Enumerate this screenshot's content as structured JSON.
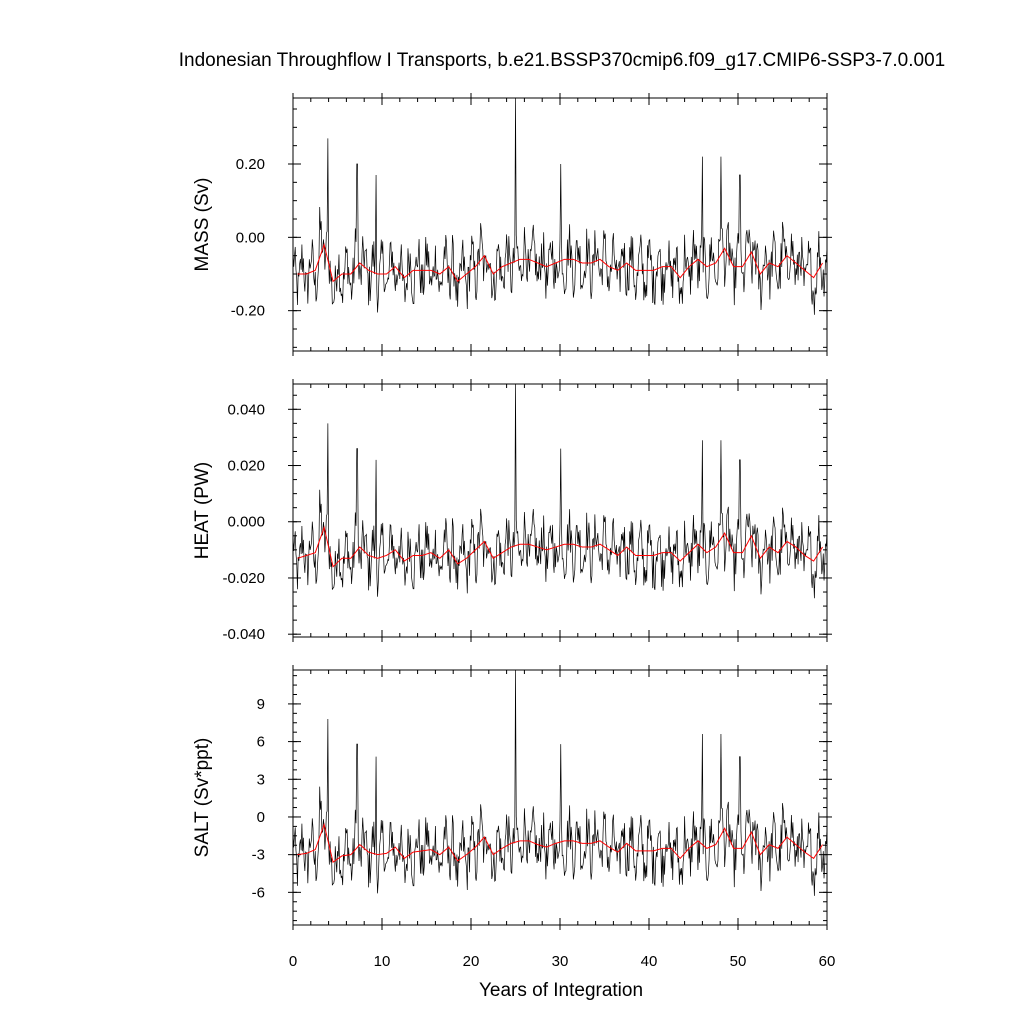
{
  "chart_data": {
    "type": "line",
    "title": "Indonesian Throughflow I Transports, b.e21.BSSP370cmip6.f09_g17.CMIP6-SSP3-7.0.001",
    "xlabel": "Years of Integration",
    "xlim": [
      0,
      60
    ],
    "x_ticks": [
      0,
      10,
      20,
      30,
      40,
      50,
      60
    ],
    "x_tick_labels": [
      "0",
      "10",
      "20",
      "30",
      "40",
      "50",
      "60"
    ],
    "series_colors": {
      "monthly": "#000000",
      "annual_mean": "#ff0000"
    },
    "panels": [
      {
        "ylabel": "MASS (Sv)",
        "ylim": [
          -0.31,
          0.38
        ],
        "y_ticks": [
          -0.2,
          0.0,
          0.2
        ],
        "y_tick_labels": [
          "-0.20",
          "0.00",
          "0.20"
        ],
        "annual_mean": [
          -0.1,
          -0.1,
          -0.09,
          -0.02,
          -0.12,
          -0.1,
          -0.1,
          -0.07,
          -0.09,
          -0.1,
          -0.1,
          -0.08,
          -0.11,
          -0.09,
          -0.09,
          -0.09,
          -0.1,
          -0.08,
          -0.12,
          -0.1,
          -0.08,
          -0.05,
          -0.1,
          -0.08,
          -0.07,
          -0.06,
          -0.06,
          -0.07,
          -0.08,
          -0.07,
          -0.06,
          -0.06,
          -0.07,
          -0.07,
          -0.06,
          -0.08,
          -0.09,
          -0.07,
          -0.09,
          -0.09,
          -0.09,
          -0.08,
          -0.08,
          -0.11,
          -0.08,
          -0.06,
          -0.08,
          -0.07,
          -0.03,
          -0.08,
          -0.08,
          -0.04,
          -0.1,
          -0.07,
          -0.08,
          -0.05,
          -0.07,
          -0.09,
          -0.11,
          -0.07
        ],
        "peak_values": [
          0.27,
          0.2,
          0.17,
          0.38,
          0.2,
          0.22,
          0.22,
          0.17
        ]
      },
      {
        "ylabel": "HEAT (PW)",
        "ylim": [
          -0.041,
          0.049
        ],
        "y_ticks": [
          -0.04,
          -0.02,
          0.0,
          0.02,
          0.04
        ],
        "y_tick_labels": [
          "-0.040",
          "-0.020",
          "0.000",
          "0.020",
          "0.040"
        ],
        "annual_mean": [
          -0.013,
          -0.012,
          -0.011,
          -0.002,
          -0.016,
          -0.013,
          -0.013,
          -0.009,
          -0.012,
          -0.013,
          -0.012,
          -0.01,
          -0.014,
          -0.012,
          -0.012,
          -0.011,
          -0.013,
          -0.01,
          -0.015,
          -0.013,
          -0.01,
          -0.007,
          -0.013,
          -0.011,
          -0.009,
          -0.008,
          -0.008,
          -0.009,
          -0.01,
          -0.009,
          -0.008,
          -0.008,
          -0.009,
          -0.009,
          -0.008,
          -0.01,
          -0.012,
          -0.009,
          -0.012,
          -0.012,
          -0.012,
          -0.011,
          -0.011,
          -0.014,
          -0.011,
          -0.008,
          -0.011,
          -0.009,
          -0.004,
          -0.011,
          -0.011,
          -0.005,
          -0.013,
          -0.009,
          -0.011,
          -0.007,
          -0.009,
          -0.012,
          -0.014,
          -0.009
        ],
        "peak_values": [
          0.035,
          0.026,
          0.022,
          0.049,
          0.026,
          0.029,
          0.029,
          0.022
        ]
      },
      {
        "ylabel": "SALT (Sv*ppt)",
        "ylim": [
          -8.6,
          11.7
        ],
        "y_ticks": [
          -6,
          -3,
          0,
          3,
          6,
          9
        ],
        "y_tick_labels": [
          "-6",
          "-3",
          "0",
          "3",
          "6",
          "9"
        ],
        "annual_mean": [
          -3.0,
          -2.9,
          -2.6,
          -0.6,
          -3.6,
          -3.1,
          -3.0,
          -2.2,
          -2.8,
          -3.0,
          -2.9,
          -2.4,
          -3.3,
          -2.8,
          -2.7,
          -2.6,
          -3.0,
          -2.4,
          -3.5,
          -3.0,
          -2.4,
          -1.6,
          -3.0,
          -2.5,
          -2.1,
          -1.9,
          -1.9,
          -2.2,
          -2.4,
          -2.1,
          -1.9,
          -1.9,
          -2.1,
          -2.1,
          -1.9,
          -2.4,
          -2.8,
          -2.1,
          -2.7,
          -2.7,
          -2.7,
          -2.5,
          -2.5,
          -3.3,
          -2.5,
          -1.9,
          -2.5,
          -2.2,
          -0.9,
          -2.5,
          -2.5,
          -1.2,
          -3.0,
          -2.2,
          -2.5,
          -1.6,
          -2.2,
          -2.8,
          -3.3,
          -2.2
        ],
        "peak_values": [
          7.8,
          5.8,
          4.8,
          11.7,
          5.8,
          6.6,
          6.6,
          4.8
        ]
      }
    ]
  }
}
